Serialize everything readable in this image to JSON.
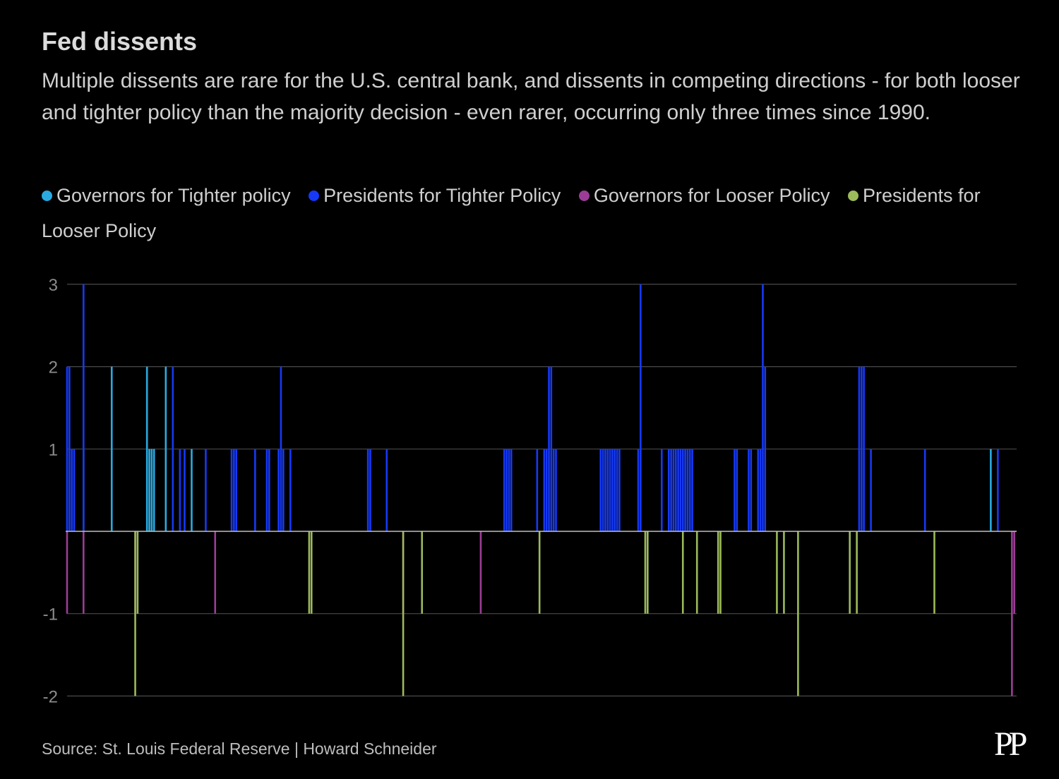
{
  "chart_data": {
    "type": "bar",
    "title": "Fed dissents",
    "subtitle": "Multiple dissents are rare for the U.S. central bank, and dissents in competing directions - for both looser and tighter policy than the majority decision - even rarer, occurring only three times since 1990.",
    "xlabel": "",
    "ylabel": "",
    "ylim": [
      -2,
      3
    ],
    "yticks": [
      3,
      2,
      1,
      -1,
      -2
    ],
    "ytick_labels": [
      "3",
      "2",
      "1",
      "-1",
      "-2"
    ],
    "grid": true,
    "x_domain": [
      0,
      404
    ],
    "legend_position": "top",
    "series": [
      {
        "name": "Governors for Tighter policy",
        "color": "#29abe2",
        "points": [
          [
            7,
            1
          ],
          [
            19,
            2
          ],
          [
            34,
            2
          ],
          [
            35,
            1
          ],
          [
            36,
            1
          ],
          [
            37,
            1
          ],
          [
            42,
            2
          ],
          [
            53,
            1
          ],
          [
            393,
            1
          ]
        ]
      },
      {
        "name": "Presidents for Tighter Policy",
        "color": "#1639f5",
        "points": [
          [
            0,
            2
          ],
          [
            1,
            2
          ],
          [
            2,
            1
          ],
          [
            3,
            1
          ],
          [
            7,
            3
          ],
          [
            45,
            2
          ],
          [
            48,
            1
          ],
          [
            50,
            1
          ],
          [
            59,
            1
          ],
          [
            70,
            1
          ],
          [
            71,
            1
          ],
          [
            72,
            1
          ],
          [
            80,
            1
          ],
          [
            85,
            1
          ],
          [
            86,
            1
          ],
          [
            90,
            1
          ],
          [
            91,
            2
          ],
          [
            92,
            1
          ],
          [
            95,
            1
          ],
          [
            128,
            1
          ],
          [
            129,
            1
          ],
          [
            136,
            1
          ],
          [
            186,
            1
          ],
          [
            187,
            1
          ],
          [
            188,
            1
          ],
          [
            189,
            1
          ],
          [
            200,
            1
          ],
          [
            203,
            1
          ],
          [
            204,
            1
          ],
          [
            205,
            2
          ],
          [
            206,
            2
          ],
          [
            207,
            1
          ],
          [
            208,
            1
          ],
          [
            227,
            1
          ],
          [
            228,
            1
          ],
          [
            229,
            1
          ],
          [
            230,
            1
          ],
          [
            231,
            1
          ],
          [
            232,
            1
          ],
          [
            233,
            1
          ],
          [
            234,
            1
          ],
          [
            235,
            1
          ],
          [
            243,
            1
          ],
          [
            244,
            3
          ],
          [
            253,
            1
          ],
          [
            256,
            1
          ],
          [
            257,
            1
          ],
          [
            258,
            1
          ],
          [
            259,
            1
          ],
          [
            260,
            1
          ],
          [
            261,
            1
          ],
          [
            262,
            1
          ],
          [
            263,
            1
          ],
          [
            264,
            1
          ],
          [
            265,
            1
          ],
          [
            266,
            1
          ],
          [
            284,
            1
          ],
          [
            285,
            1
          ],
          [
            290,
            1
          ],
          [
            291,
            1
          ],
          [
            294,
            1
          ],
          [
            295,
            1
          ],
          [
            296,
            3
          ],
          [
            297,
            2
          ],
          [
            337,
            2
          ],
          [
            338,
            2
          ],
          [
            339,
            2
          ],
          [
            342,
            1
          ],
          [
            365,
            1
          ],
          [
            396,
            1
          ]
        ]
      },
      {
        "name": "Governors for Looser Policy",
        "color": "#9b3d96",
        "points": [
          [
            0,
            -1
          ],
          [
            7,
            -1
          ],
          [
            29,
            -1
          ],
          [
            63,
            -1
          ],
          [
            143,
            -1
          ],
          [
            176,
            -1
          ],
          [
            402,
            -2
          ],
          [
            403,
            -1
          ]
        ]
      },
      {
        "name": "Presidents for Looser Policy",
        "color": "#9cba5a",
        "points": [
          [
            29,
            -2
          ],
          [
            30,
            -1
          ],
          [
            103,
            -1
          ],
          [
            104,
            -1
          ],
          [
            143,
            -2
          ],
          [
            151,
            -1
          ],
          [
            201,
            -1
          ],
          [
            246,
            -1
          ],
          [
            247,
            -1
          ],
          [
            262,
            -1
          ],
          [
            268,
            -1
          ],
          [
            277,
            -1
          ],
          [
            278,
            -1
          ],
          [
            302,
            -1
          ],
          [
            305,
            -1
          ],
          [
            311,
            -2
          ],
          [
            333,
            -1
          ],
          [
            336,
            -1
          ],
          [
            369,
            -1
          ]
        ]
      }
    ]
  },
  "source": "Source: St. Louis Federal Reserve | Howard Schneider",
  "logo": "PP",
  "grid_color": "#4a4a4a",
  "axis_color": "#bfbfbf",
  "tick_label_color": "#8c8c8c"
}
